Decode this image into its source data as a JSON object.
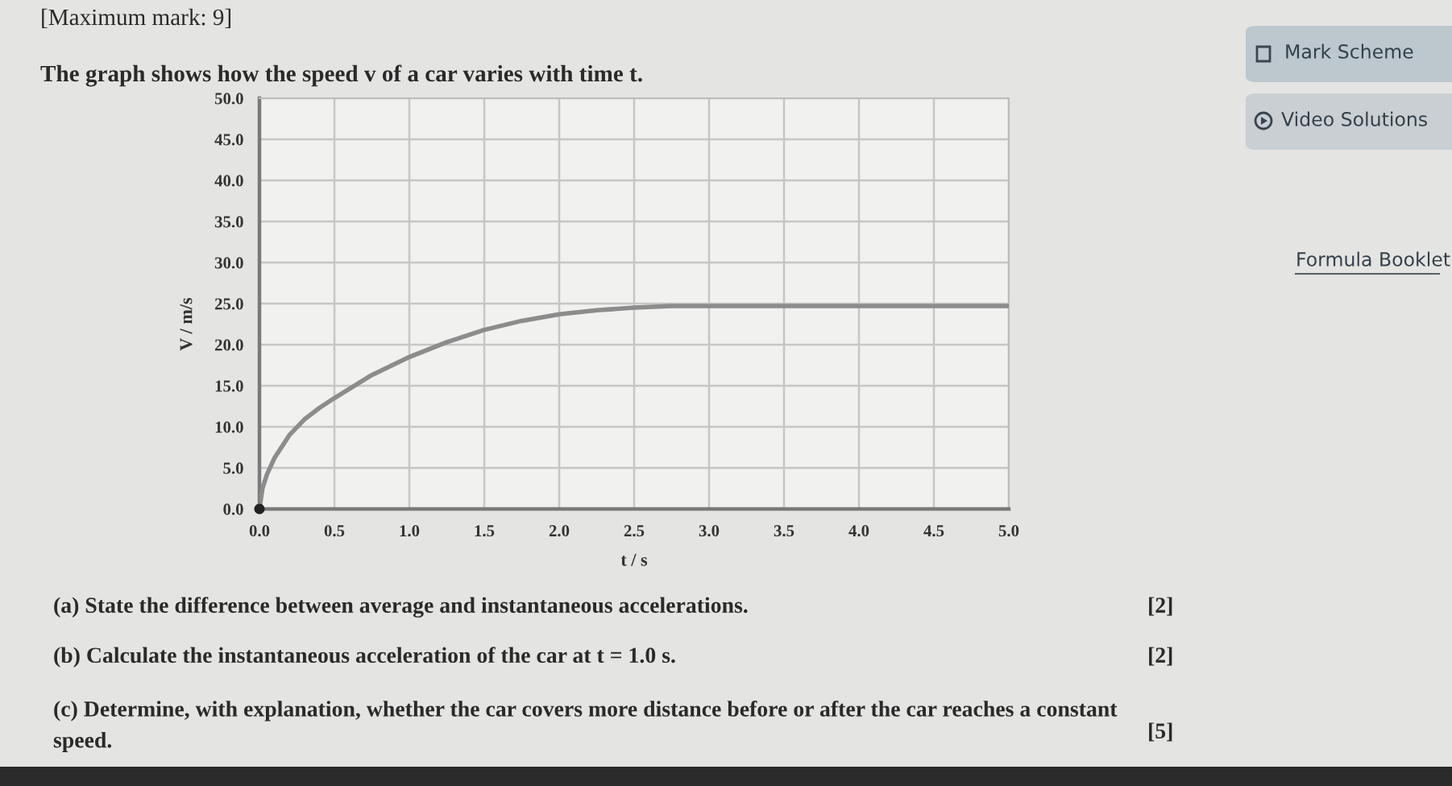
{
  "chart_data": {
    "type": "line",
    "title": "The graph shows how the speed v of a car varies with time t.",
    "xlabel": "t / s",
    "ylabel": "V / m/s",
    "series": [
      {
        "color": "#8c8c8c",
        "marker": "none",
        "line_style": "solid",
        "x": [
          0,
          0.02,
          0.05,
          0.1,
          0.2,
          0.3,
          0.4,
          0.5,
          0.75,
          1.0,
          1.25,
          1.5,
          1.75,
          2.0,
          2.25,
          2.5,
          2.75,
          3.0,
          5.0
        ],
        "values": [
          0,
          2.5,
          4.2,
          6.2,
          9.0,
          10.9,
          12.3,
          13.5,
          16.3,
          18.5,
          20.3,
          21.8,
          22.9,
          23.7,
          24.2,
          24.5,
          24.7,
          24.7,
          24.7
        ]
      },
      {
        "type": "scatter",
        "marker": "circle",
        "color": "#222222",
        "x": [
          0
        ],
        "values": [
          0
        ]
      }
    ],
    "xlim": [
      0,
      5
    ],
    "ylim": [
      0,
      50
    ],
    "xticks": [
      {
        "value": 0,
        "label": "0.0"
      },
      {
        "value": 0.5,
        "label": "0.5"
      },
      {
        "value": 1,
        "label": "1.0"
      },
      {
        "value": 1.5,
        "label": "1.5"
      },
      {
        "value": 2,
        "label": "2.0"
      },
      {
        "value": 2.5,
        "label": "2.5"
      },
      {
        "value": 3,
        "label": "3.0"
      },
      {
        "value": 3.5,
        "label": "3.5"
      },
      {
        "value": 4,
        "label": "4.0"
      },
      {
        "value": 4.5,
        "label": "4.5"
      },
      {
        "value": 5,
        "label": "5.0"
      }
    ],
    "yticks": [
      {
        "value": 0,
        "label": "0.0"
      },
      {
        "value": 5,
        "label": "5.0"
      },
      {
        "value": 10,
        "label": "10.0"
      },
      {
        "value": 15,
        "label": "15.0"
      },
      {
        "value": 20,
        "label": "20.0"
      },
      {
        "value": 25,
        "label": "25.0"
      },
      {
        "value": 30,
        "label": "30.0"
      },
      {
        "value": 35,
        "label": "35.0"
      },
      {
        "value": 40,
        "label": "40.0"
      },
      {
        "value": 45,
        "label": "45.0"
      },
      {
        "value": 50,
        "label": "50.0"
      }
    ],
    "grid": true,
    "annotations": [
      "[Maximum mark: 9]",
      "(a) State the difference between average and instantaneous accelerations.",
      "[2]",
      "(b) Calculate the instantaneous acceleration of the car at t = 1.0 s.",
      "[2]",
      "(c) Determine, with explanation, whether the car covers more distance before or after the car reaches a constant\nspeed.",
      "[5]",
      "Mark Scheme",
      "Video Solutions",
      "Formula Booklet"
    ]
  }
}
